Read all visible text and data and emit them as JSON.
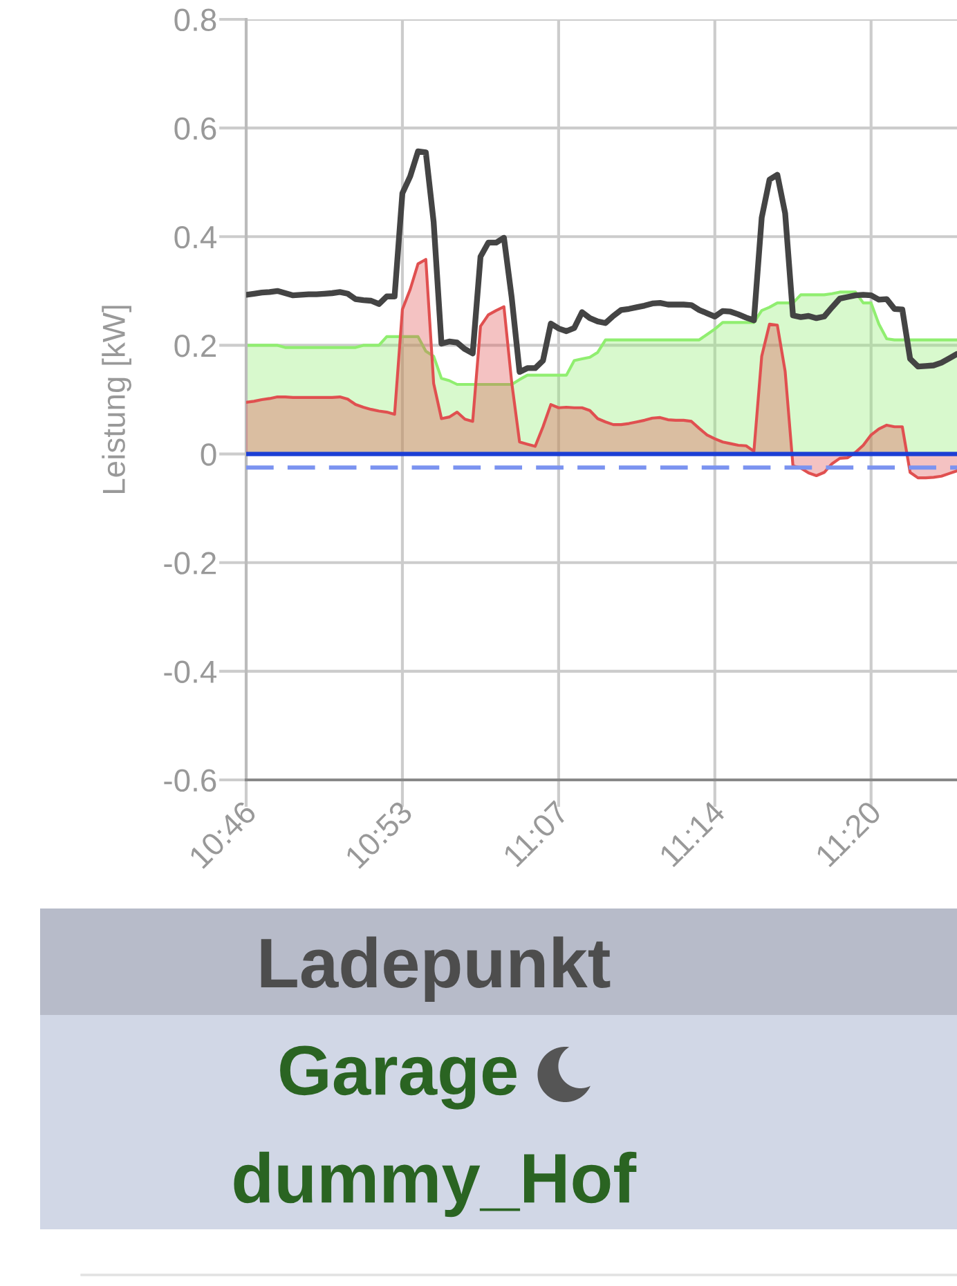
{
  "chart_data": {
    "type": "line",
    "ylabel": "Leistung [kW]",
    "categories": [
      "10:46",
      null,
      null,
      null,
      null,
      null,
      null,
      null,
      null,
      null,
      null,
      null,
      null,
      null,
      null,
      null,
      null,
      null,
      null,
      null,
      "10:53",
      null,
      null,
      null,
      null,
      null,
      null,
      null,
      null,
      null,
      null,
      null,
      null,
      null,
      null,
      null,
      null,
      null,
      null,
      null,
      "11:07",
      null,
      null,
      null,
      null,
      null,
      null,
      null,
      null,
      null,
      null,
      null,
      null,
      null,
      null,
      null,
      null,
      null,
      null,
      null,
      "11:14",
      null,
      null,
      null,
      null,
      null,
      null,
      null,
      null,
      null,
      null,
      null,
      null,
      null,
      null,
      null,
      null,
      null,
      null,
      null,
      "11:20",
      null,
      null,
      null,
      null,
      null,
      null,
      null,
      null,
      null,
      null,
      null
    ],
    "ylim": [
      -0.6,
      0.8
    ],
    "yticks": [
      -0.6,
      -0.4,
      -0.2,
      0,
      0.2,
      0.4,
      0.6,
      0.8
    ],
    "grid": true,
    "ref_lines": [
      {
        "axis": "y",
        "value": 0,
        "color": "#1c3fd4"
      },
      {
        "axis": "y",
        "value": -0.025,
        "color": "#7b93f0",
        "line_style": "dashed"
      }
    ],
    "series": [
      {
        "type": "area",
        "color": "#90ee70",
        "values": [
          0.2,
          0.2,
          0.2,
          0.2,
          0.2,
          0.196,
          0.196,
          0.196,
          0.196,
          0.196,
          0.196,
          0.196,
          0.196,
          0.196,
          0.196,
          0.2,
          0.2,
          0.2,
          0.216,
          0.216,
          0.216,
          0.216,
          0.216,
          0.189,
          0.18,
          0.139,
          0.135,
          0.128,
          0.128,
          0.128,
          0.128,
          0.128,
          0.128,
          0.128,
          0.128,
          0.137,
          0.145,
          0.145,
          0.145,
          0.145,
          0.145,
          0.145,
          0.172,
          0.175,
          0.178,
          0.187,
          0.21,
          0.21,
          0.21,
          0.21,
          0.21,
          0.21,
          0.21,
          0.21,
          0.21,
          0.21,
          0.21,
          0.21,
          0.21,
          0.22,
          0.23,
          0.242,
          0.242,
          0.242,
          0.242,
          0.242,
          0.264,
          0.27,
          0.278,
          0.278,
          0.278,
          0.293,
          0.293,
          0.293,
          0.293,
          0.295,
          0.298,
          0.298,
          0.298,
          0.278,
          0.278,
          0.239,
          0.212,
          0.21,
          0.21,
          0.21,
          0.21,
          0.21,
          0.21,
          0.21,
          0.21,
          0.21
        ]
      },
      {
        "type": "area",
        "color": "#e05050",
        "values": [
          0.095,
          0.097,
          0.1,
          0.102,
          0.105,
          0.105,
          0.104,
          0.104,
          0.104,
          0.104,
          0.104,
          0.104,
          0.105,
          0.101,
          0.091,
          0.086,
          0.082,
          0.079,
          0.077,
          0.073,
          0.266,
          0.303,
          0.35,
          0.358,
          0.13,
          0.065,
          0.068,
          0.077,
          0.064,
          0.06,
          0.235,
          0.256,
          0.264,
          0.271,
          0.131,
          0.022,
          0.018,
          0.014,
          0.05,
          0.091,
          0.085,
          0.086,
          0.085,
          0.085,
          0.08,
          0.065,
          0.059,
          0.054,
          0.054,
          0.056,
          0.059,
          0.062,
          0.066,
          0.067,
          0.063,
          0.062,
          0.062,
          0.06,
          0.047,
          0.035,
          0.028,
          0.022,
          0.019,
          0.016,
          0.015,
          0.005,
          0.18,
          0.239,
          0.237,
          0.152,
          -0.022,
          -0.026,
          -0.035,
          -0.04,
          -0.034,
          -0.018,
          -0.008,
          -0.007,
          0.003,
          0.016,
          0.035,
          0.046,
          0.053,
          0.05,
          0.05,
          -0.034,
          -0.044,
          -0.044,
          -0.043,
          -0.041,
          -0.036,
          -0.031
        ]
      },
      {
        "color": "#444444",
        "values": [
          0.293,
          0.295,
          0.297,
          0.298,
          0.3,
          0.296,
          0.292,
          0.293,
          0.294,
          0.294,
          0.295,
          0.296,
          0.298,
          0.295,
          0.285,
          0.283,
          0.282,
          0.276,
          0.29,
          0.29,
          0.48,
          0.511,
          0.557,
          0.555,
          0.427,
          0.203,
          0.207,
          0.205,
          0.193,
          0.185,
          0.363,
          0.389,
          0.389,
          0.398,
          0.287,
          0.151,
          0.158,
          0.158,
          0.172,
          0.24,
          0.231,
          0.226,
          0.232,
          0.261,
          0.25,
          0.244,
          0.241,
          0.254,
          0.265,
          0.267,
          0.27,
          0.273,
          0.277,
          0.278,
          0.275,
          0.275,
          0.275,
          0.274,
          0.265,
          0.259,
          0.253,
          0.263,
          0.262,
          0.257,
          0.251,
          0.246,
          0.435,
          0.505,
          0.514,
          0.443,
          0.255,
          0.252,
          0.254,
          0.25,
          0.253,
          0.27,
          0.286,
          0.289,
          0.292,
          0.293,
          0.292,
          0.284,
          0.285,
          0.267,
          0.266,
          0.175,
          0.161,
          0.162,
          0.163,
          0.168,
          0.176,
          0.184
        ]
      }
    ],
    "annotations": [
      "Ladepunkt",
      "Garage",
      "dummy_Hof"
    ]
  }
}
